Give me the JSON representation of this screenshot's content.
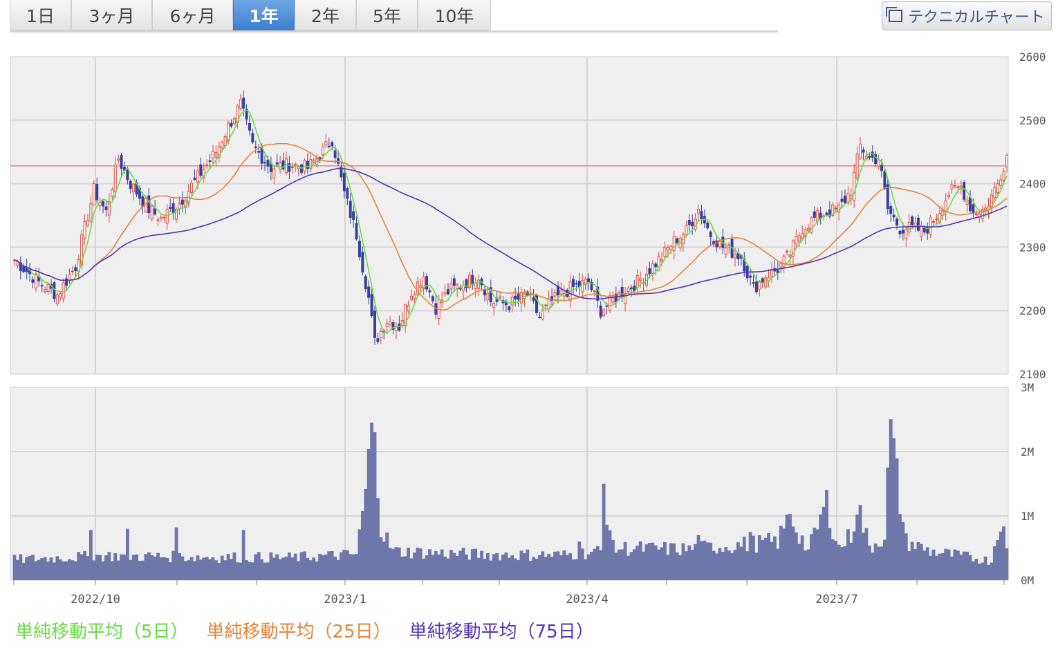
{
  "tabs": [
    {
      "label": "1日",
      "active": false
    },
    {
      "label": "3ヶ月",
      "active": false
    },
    {
      "label": "6ヶ月",
      "active": false
    },
    {
      "label": "1年",
      "active": true
    },
    {
      "label": "2年",
      "active": false
    },
    {
      "label": "5年",
      "active": false
    },
    {
      "label": "10年",
      "active": false
    }
  ],
  "tech_button": {
    "label": "テクニカルチャート",
    "icon": "window-icon"
  },
  "legend": [
    {
      "label": "単純移動平均（5日）",
      "color": "#66dd44"
    },
    {
      "label": "単純移動平均（25日）",
      "color": "#e8833a"
    },
    {
      "label": "単純移動平均（75日）",
      "color": "#5533bb"
    }
  ],
  "chart_data": {
    "type": "candlestick",
    "x_ticks": [
      "2022/10",
      "2023/1",
      "2023/4",
      "2023/7"
    ],
    "price_axis": {
      "ticks": [
        "2600",
        "2500",
        "2400",
        "2300",
        "2200",
        "2100"
      ],
      "ylim": [
        2100,
        2600
      ]
    },
    "volume_axis": {
      "ticks": [
        "3M",
        "2M",
        "1M",
        "0M"
      ],
      "ylim": [
        0,
        3000000
      ]
    },
    "reference_line": 2428,
    "colors": {
      "up": "#e8463c",
      "down": "#3a3f9e",
      "volume": "#6f76aa",
      "ref": "#f08080",
      "grid": "#d6d6d6",
      "bg": "#efefef"
    },
    "price_anchors": [
      [
        0,
        2280
      ],
      [
        8,
        2245
      ],
      [
        14,
        2225
      ],
      [
        20,
        2270
      ],
      [
        26,
        2390
      ],
      [
        30,
        2355
      ],
      [
        34,
        2440
      ],
      [
        38,
        2400
      ],
      [
        44,
        2360
      ],
      [
        48,
        2345
      ],
      [
        54,
        2370
      ],
      [
        60,
        2410
      ],
      [
        66,
        2450
      ],
      [
        70,
        2490
      ],
      [
        74,
        2525
      ],
      [
        78,
        2460
      ],
      [
        84,
        2425
      ],
      [
        90,
        2430
      ],
      [
        96,
        2425
      ],
      [
        100,
        2445
      ],
      [
        104,
        2470
      ],
      [
        108,
        2385
      ],
      [
        112,
        2320
      ],
      [
        116,
        2220
      ],
      [
        118,
        2150
      ],
      [
        122,
        2185
      ],
      [
        126,
        2175
      ],
      [
        130,
        2230
      ],
      [
        134,
        2255
      ],
      [
        138,
        2205
      ],
      [
        142,
        2230
      ],
      [
        148,
        2245
      ],
      [
        152,
        2255
      ],
      [
        156,
        2215
      ],
      [
        162,
        2210
      ],
      [
        168,
        2225
      ],
      [
        172,
        2190
      ],
      [
        176,
        2215
      ],
      [
        182,
        2235
      ],
      [
        188,
        2245
      ],
      [
        192,
        2200
      ],
      [
        198,
        2225
      ],
      [
        204,
        2245
      ],
      [
        208,
        2265
      ],
      [
        212,
        2285
      ],
      [
        216,
        2310
      ],
      [
        220,
        2325
      ],
      [
        224,
        2360
      ],
      [
        228,
        2320
      ],
      [
        232,
        2300
      ],
      [
        238,
        2285
      ],
      [
        242,
        2235
      ],
      [
        246,
        2255
      ],
      [
        250,
        2265
      ],
      [
        254,
        2290
      ],
      [
        258,
        2330
      ],
      [
        262,
        2345
      ],
      [
        266,
        2355
      ],
      [
        270,
        2360
      ],
      [
        274,
        2390
      ],
      [
        277,
        2460
      ],
      [
        280,
        2440
      ],
      [
        283,
        2440
      ],
      [
        286,
        2360
      ],
      [
        290,
        2330
      ],
      [
        294,
        2330
      ],
      [
        298,
        2325
      ],
      [
        302,
        2350
      ],
      [
        306,
        2385
      ],
      [
        310,
        2395
      ],
      [
        314,
        2355
      ],
      [
        318,
        2360
      ],
      [
        322,
        2400
      ],
      [
        325,
        2445
      ]
    ],
    "volume_anchors": [
      [
        0,
        320000
      ],
      [
        30,
        380000
      ],
      [
        60,
        360000
      ],
      [
        90,
        350000
      ],
      [
        112,
        400000
      ],
      [
        114,
        1000000
      ],
      [
        118,
        2600000
      ],
      [
        120,
        800000
      ],
      [
        124,
        450000
      ],
      [
        150,
        400000
      ],
      [
        180,
        390000
      ],
      [
        192,
        450000
      ],
      [
        193,
        1450000
      ],
      [
        196,
        500000
      ],
      [
        220,
        480000
      ],
      [
        250,
        600000
      ],
      [
        254,
        1000000
      ],
      [
        260,
        450000
      ],
      [
        266,
        1200000
      ],
      [
        270,
        500000
      ],
      [
        274,
        700000
      ],
      [
        276,
        1200000
      ],
      [
        280,
        500000
      ],
      [
        285,
        700000
      ],
      [
        287,
        2350000
      ],
      [
        288,
        1900000
      ],
      [
        292,
        600000
      ],
      [
        300,
        450000
      ],
      [
        320,
        300000
      ],
      [
        323,
        1000000
      ],
      [
        325,
        450000
      ]
    ],
    "volume_spikes": [
      [
        25,
        780000
      ],
      [
        37,
        800000
      ],
      [
        53,
        820000
      ],
      [
        75,
        780000
      ],
      [
        185,
        600000
      ],
      [
        224,
        700000
      ],
      [
        241,
        750000
      ],
      [
        254,
        1030000
      ]
    ]
  }
}
